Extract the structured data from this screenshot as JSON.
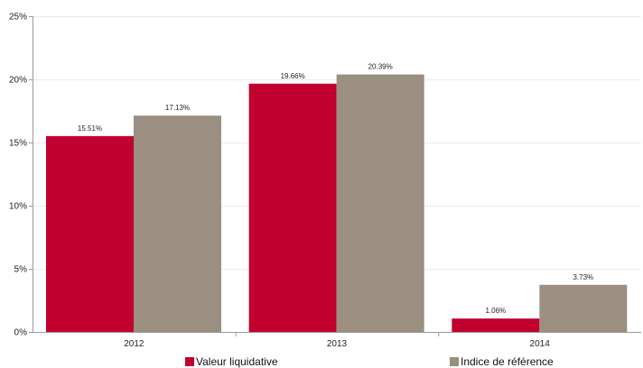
{
  "chart_data": {
    "type": "bar",
    "categories": [
      "2012",
      "2013",
      "2014"
    ],
    "series": [
      {
        "name": "Valeur liquidative",
        "values": [
          15.51,
          19.66,
          1.06
        ],
        "labels": [
          "15.51%",
          "19.66%",
          "1.06%"
        ],
        "color": "#c0002e"
      },
      {
        "name": "Indice de référence",
        "values": [
          17.13,
          20.39,
          3.73
        ],
        "labels": [
          "17.13%",
          "20.39%",
          "3.73%"
        ],
        "color": "#9a8f81"
      }
    ],
    "y_ticks": [
      0,
      5,
      10,
      15,
      20,
      25
    ],
    "y_tick_labels": [
      "0%",
      "5%",
      "10%",
      "15%",
      "20%",
      "25%"
    ],
    "ylim": [
      0,
      25
    ],
    "grid": true,
    "legend_position": "bottom",
    "title": "",
    "xlabel": "",
    "ylabel": ""
  }
}
